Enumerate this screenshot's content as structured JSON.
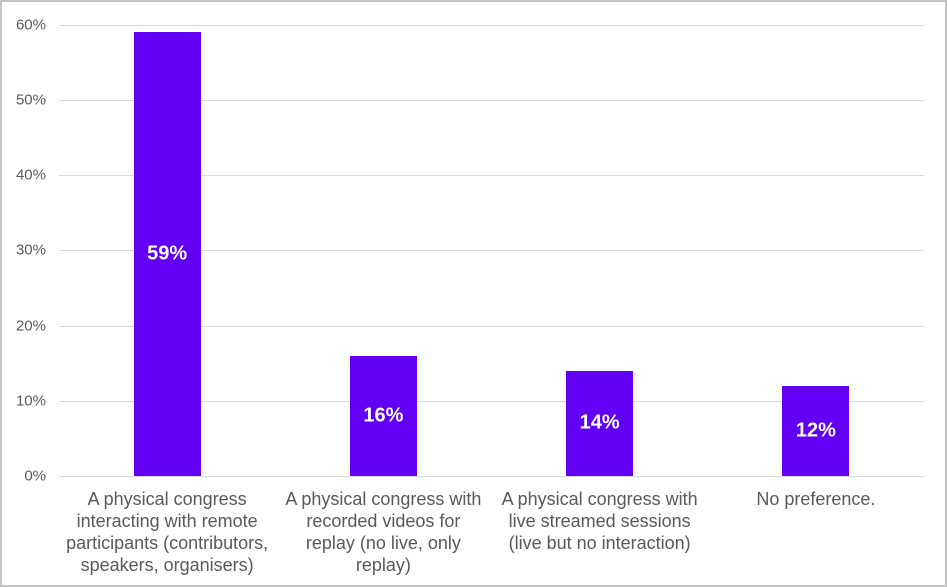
{
  "figure": {
    "background_color": "#ffffff",
    "border_color": "#c3c3c3"
  },
  "chart_data": {
    "type": "bar",
    "title": "",
    "xlabel": "",
    "ylabel": "",
    "categories": [
      "A physical congress\ninteracting with remote\nparticipants (contributors,\nspeakers, organisers)",
      "A physical congress with\nrecorded videos for\nreplay (no live, only\nreplay)",
      "A physical congress with\nlive streamed sessions\n(live but no interaction)",
      "No preference."
    ],
    "values": [
      59,
      16,
      14,
      12
    ],
    "data_labels": [
      "59%",
      "16%",
      "14%",
      "12%"
    ],
    "ylim": [
      0,
      60
    ],
    "ytick_step": 10,
    "ytick_labels": [
      "0%",
      "10%",
      "20%",
      "30%",
      "40%",
      "50%",
      "60%"
    ],
    "grid": true,
    "legend": false,
    "bar_color": "#6100f5",
    "data_label_color": "#ffffff",
    "axis_text_color": "#595959",
    "gridline_color": "#d9d9d9"
  }
}
